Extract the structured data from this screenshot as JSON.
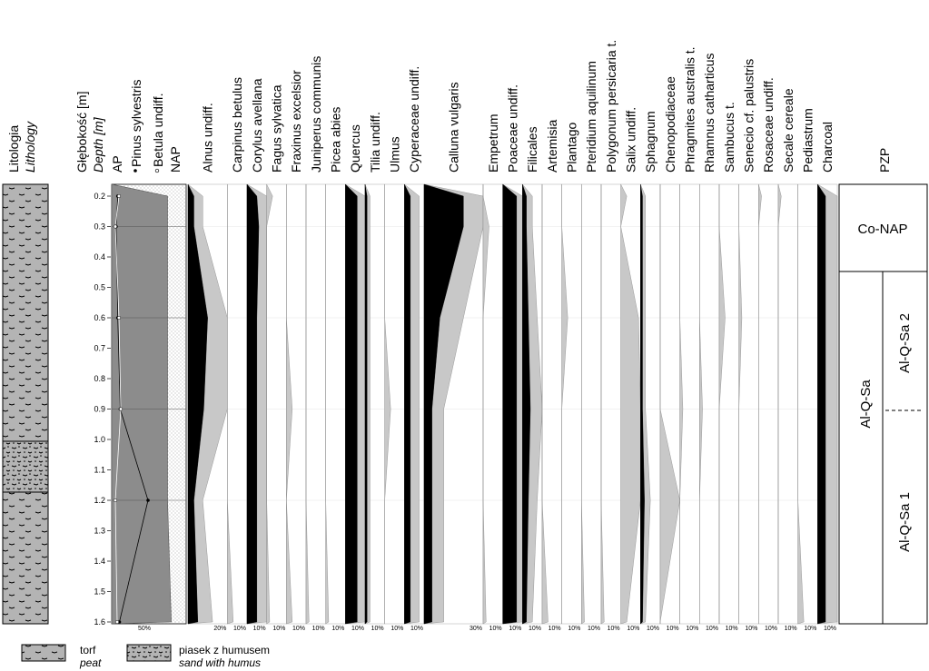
{
  "chart_data": {
    "type": "area",
    "headers": {
      "lithology": "Litologia",
      "lithology_en": "Lithology",
      "depth": "Głębokość [m]",
      "depth_en": "Depth [m]",
      "ap": "AP",
      "pinus": "Pinus sylvestris",
      "betula": "Betula undiff.",
      "nap": "NAP",
      "pzp": "PZP"
    },
    "depth_ticks": [
      "0.2",
      "0.3",
      "0.4",
      "0.5",
      "0.6",
      "0.7",
      "0.8",
      "0.9",
      "1.0",
      "1.1",
      "1.2",
      "1.3",
      "1.4",
      "1.5",
      "1.6"
    ],
    "depths": [
      0.2,
      0.3,
      0.6,
      0.9,
      1.2,
      1.6
    ],
    "ap_nap": {
      "scale_label": "50%",
      "ap": [
        75,
        75,
        75,
        75,
        75,
        80
      ],
      "pinus": [
        3,
        1,
        3,
        6,
        40,
        5
      ],
      "betula": [
        2,
        0,
        2,
        3,
        0,
        1
      ]
    },
    "taxa": [
      {
        "name": "Alnus undiff.",
        "max": "20%",
        "values": [
          3,
          3,
          10,
          8,
          3,
          5
        ],
        "color": "#000"
      },
      {
        "name": "Carpinus betulus",
        "max": "10%",
        "values": [
          0,
          0,
          0,
          0,
          0,
          1
        ],
        "color": "#c8c8c8"
      },
      {
        "name": "Corylus avellana",
        "max": "10%",
        "values": [
          5,
          6,
          5,
          5,
          5,
          5
        ],
        "color": "#000"
      },
      {
        "name": "Fagus sylvatica",
        "max": "10%",
        "values": [
          1,
          0,
          0,
          0,
          0,
          0.5
        ],
        "color": "#c8c8c8"
      },
      {
        "name": "Fraxinus excelsior",
        "max": "10%",
        "values": [
          0,
          0,
          0,
          1,
          0,
          1
        ],
        "color": "#c8c8c8"
      },
      {
        "name": "Juniperus communis",
        "max": "10%",
        "values": [
          0,
          0,
          0,
          0,
          0,
          0.5
        ],
        "color": "#c8c8c8"
      },
      {
        "name": "Picea abies",
        "max": "10%",
        "values": [
          0,
          0,
          0,
          0,
          0,
          0.5
        ],
        "color": "#c8c8c8"
      },
      {
        "name": "Quercus",
        "max": "10%",
        "values": [
          6,
          6,
          6,
          6,
          6,
          6
        ],
        "color": "#000"
      },
      {
        "name": "Tilia undiff.",
        "max": "10%",
        "values": [
          1,
          1,
          1,
          1,
          1,
          1
        ],
        "color": "#000"
      },
      {
        "name": "Ulmus",
        "max": "10%",
        "values": [
          0,
          0,
          0,
          1,
          0,
          0
        ],
        "color": "#c8c8c8"
      },
      {
        "name": "Cyperaceae undiff.",
        "max": "10%",
        "values": [
          3,
          3,
          3,
          3,
          3,
          3
        ],
        "color": "#000"
      },
      {
        "name": "Calluna vulgaris",
        "max": "30%",
        "values": [
          20,
          20,
          8,
          4,
          4,
          4
        ],
        "color": "#000"
      },
      {
        "name": "Empetrum",
        "max": "10%",
        "values": [
          0,
          1,
          0,
          0,
          0,
          0.5
        ],
        "color": "#c8c8c8"
      },
      {
        "name": "Poaceae undiff.",
        "max": "10%",
        "values": [
          7,
          7,
          7,
          7,
          7,
          7
        ],
        "color": "#000"
      },
      {
        "name": "Filicales",
        "max": "10%",
        "values": [
          2,
          2,
          3,
          4,
          3,
          2
        ],
        "color": "#000"
      },
      {
        "name": "Artemisia",
        "max": "10%",
        "values": [
          0,
          0,
          0,
          0,
          0,
          1
        ],
        "color": "#c8c8c8"
      },
      {
        "name": "Plantago",
        "max": "10%",
        "values": [
          0,
          0,
          1,
          0,
          0,
          0
        ],
        "color": "#c8c8c8"
      },
      {
        "name": "Pteridium aquilinum",
        "max": "10%",
        "values": [
          0,
          0,
          0,
          0,
          0,
          0.5
        ],
        "color": "#c8c8c8"
      },
      {
        "name": "Polygonum persicaria t.",
        "max": "10%",
        "values": [
          0,
          0,
          0,
          0,
          0,
          0.5
        ],
        "color": "#c8c8c8"
      },
      {
        "name": "Salix undiff.",
        "max": "10%",
        "values": [
          1,
          0,
          3,
          5,
          4,
          1
        ],
        "color": "#c8c8c8"
      },
      {
        "name": "Sphagnum",
        "max": "10%",
        "values": [
          1,
          1,
          1,
          1,
          2,
          1
        ],
        "color": "#000"
      },
      {
        "name": "Chenopodiaceae",
        "max": "10%",
        "values": [
          0,
          0,
          0,
          0,
          4,
          0
        ],
        "color": "#c8c8c8"
      },
      {
        "name": "Phragmites australis t.",
        "max": "10%",
        "values": [
          0,
          0,
          0,
          0.5,
          0,
          0
        ],
        "color": "#c8c8c8"
      },
      {
        "name": "Rhamnus catharticus",
        "max": "10%",
        "values": [
          0,
          0,
          0,
          0.5,
          0,
          0
        ],
        "color": "#c8c8c8"
      },
      {
        "name": "Sambucus t.",
        "max": "10%",
        "values": [
          0,
          0,
          1,
          0,
          0,
          0
        ],
        "color": "#c8c8c8"
      },
      {
        "name": "Senecio cf. palustris",
        "max": "10%",
        "values": [
          0,
          0,
          0.5,
          0,
          0,
          0
        ],
        "color": "#c8c8c8"
      },
      {
        "name": "Rosaceae undiff.",
        "max": "10%",
        "values": [
          0.5,
          0,
          0,
          0,
          0,
          0
        ],
        "color": "#c8c8c8"
      },
      {
        "name": "Secale cereale",
        "max": "10%",
        "values": [
          0.5,
          0,
          0,
          0,
          0,
          0
        ],
        "color": "#c8c8c8"
      },
      {
        "name": "Pediastrum",
        "max": "10%",
        "values": [
          0,
          0,
          0,
          0,
          0,
          1
        ],
        "color": "#c8c8c8"
      },
      {
        "name": "Charcoal",
        "max": "10%",
        "values": [
          4,
          4,
          4,
          4,
          4,
          4
        ],
        "color": "#000"
      }
    ],
    "zones": {
      "co_nap": "Co-NAP",
      "al_q_sa": "Al-Q-Sa",
      "al_q_sa_2": "Al-Q-Sa 2",
      "al_q_sa_1": "Al-Q-Sa 1"
    },
    "legend": [
      {
        "label": "torf",
        "label_en": "peat"
      },
      {
        "label": "piasek z humusem",
        "label_en": "sand with humus"
      }
    ]
  }
}
